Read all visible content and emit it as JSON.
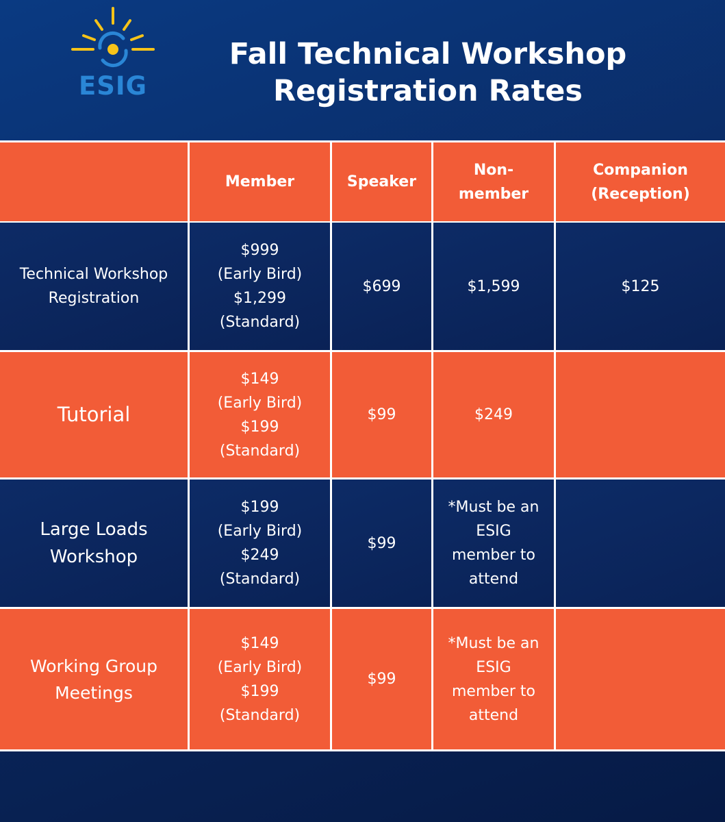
{
  "logo": {
    "text": "ESIG"
  },
  "title": {
    "line1": "Fall Technical Workshop",
    "line2": "Registration Rates"
  },
  "table": {
    "headers": [
      "",
      "Member",
      "Speaker",
      "Non-\nmember",
      "Companion\n(Reception)"
    ],
    "rows": [
      {
        "label": "Technical Workshop\nRegistration",
        "member": "$999\n(Early Bird)\n$1,299\n(Standard)",
        "speaker": "$699",
        "nonmember": "$1,599",
        "companion": "$125"
      },
      {
        "label": "Tutorial",
        "member": "$149\n(Early Bird)\n$199\n(Standard)",
        "speaker": "$99",
        "nonmember": "$249",
        "companion": ""
      },
      {
        "label": "Large Loads\nWorkshop",
        "member": "$199\n(Early Bird)\n$249\n(Standard)",
        "speaker": "$99",
        "nonmember": "*Must be an\nESIG\nmember to\nattend",
        "companion": ""
      },
      {
        "label": "Working Group\nMeetings",
        "member": "$149\n(Early Bird)\n$199\n(Standard)",
        "speaker": "$99",
        "nonmember": "*Must be an\nESIG\nmember to\nattend",
        "companion": ""
      }
    ]
  },
  "colors": {
    "orange": "#f25c37",
    "navy": "#0b2a63",
    "logo_blue": "#2a86d6",
    "logo_yellow": "#f6c319"
  }
}
